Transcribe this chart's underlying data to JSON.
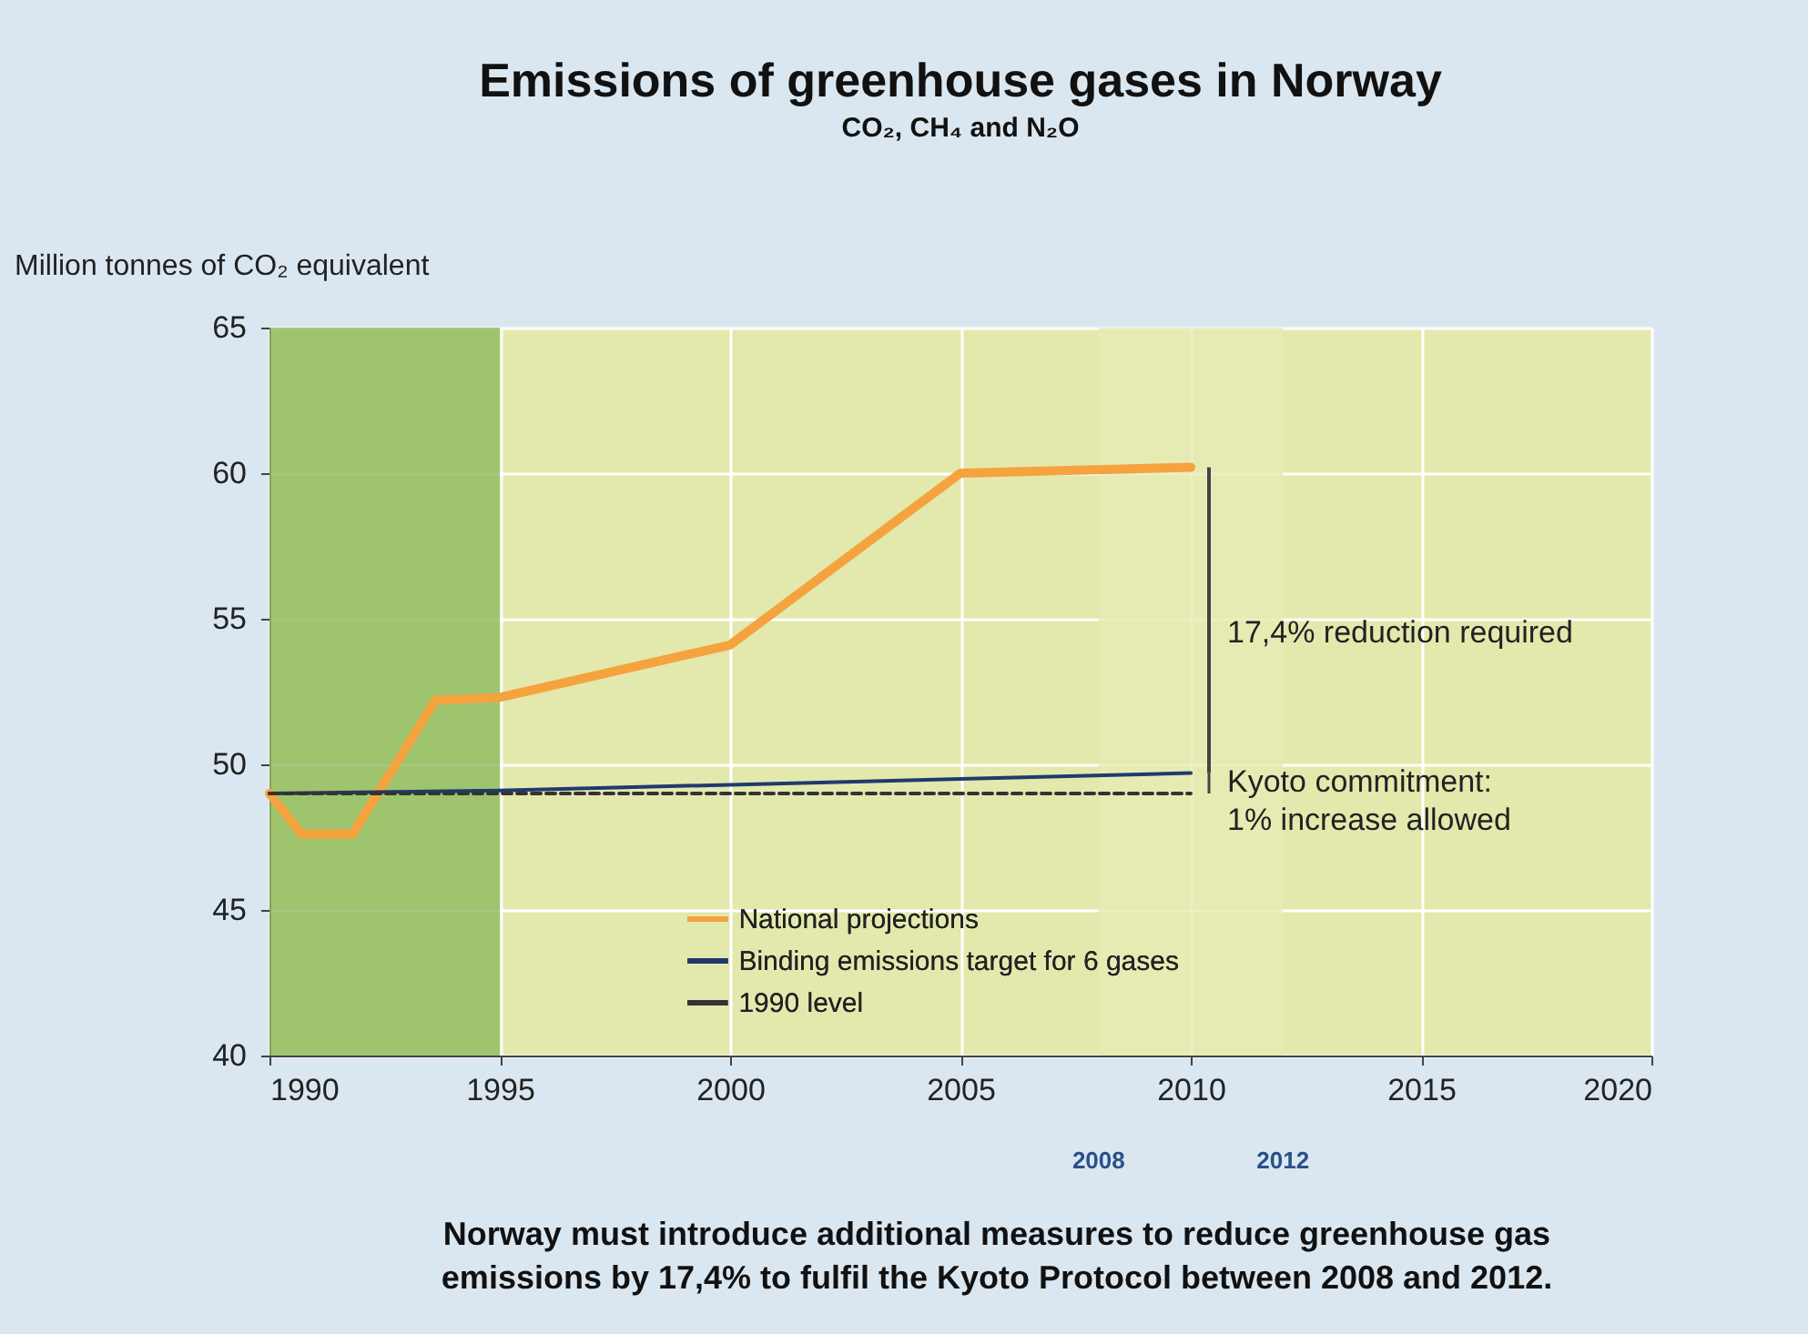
{
  "chart_data": {
    "type": "line",
    "title": "Emissions of greenhouse gases in Norway",
    "subtitle": "CO₂, CH₄ and N₂O",
    "ylabel": "Million tonnes of CO₂ equivalent",
    "series": [
      {
        "name": "National projections",
        "color": "#f5a33e",
        "x": [
          1990,
          1990.7,
          1991.8,
          1993.6,
          1995,
          2000,
          2005,
          2010
        ],
        "values": [
          49.0,
          47.6,
          47.6,
          52.2,
          52.3,
          54.1,
          60.0,
          60.2
        ],
        "line_style": "solid"
      },
      {
        "name": "Binding emissions target for 6 gases",
        "color": "#1f3a6e",
        "x": [
          1990,
          1995,
          2000,
          2005,
          2010
        ],
        "values": [
          49.0,
          49.1,
          49.3,
          49.5,
          49.7
        ],
        "line_style": "solid"
      },
      {
        "name": "1990 level",
        "color": "#333333",
        "x": [
          1990,
          2010
        ],
        "values": [
          49.0,
          49.0
        ],
        "line_style": "dashed"
      }
    ],
    "xlim": [
      1990,
      2020
    ],
    "xticks": [
      1990,
      1995,
      2000,
      2005,
      2010,
      2015,
      2020
    ],
    "ylim": [
      40,
      65
    ],
    "yticks": [
      40,
      45,
      50,
      55,
      60,
      65
    ],
    "bands": [
      {
        "axis": "x",
        "from": 1990,
        "to": 1995,
        "label": null,
        "color": "#8dba5e"
      },
      {
        "axis": "x",
        "from": 2008,
        "to": 2012,
        "label": null,
        "color": "#e6ebb4"
      }
    ],
    "annotations": [
      "17,4% reduction required",
      "Kyoto commitment:\n1% increase allowed",
      "2008",
      "2012",
      "Norway must introduce additional measures to reduce greenhouse gas\nemissions by 17,4% to fulfil the Kyoto Protocol between 2008 and 2012."
    ],
    "grid": true,
    "legend": "bottom",
    "marker": "none"
  }
}
